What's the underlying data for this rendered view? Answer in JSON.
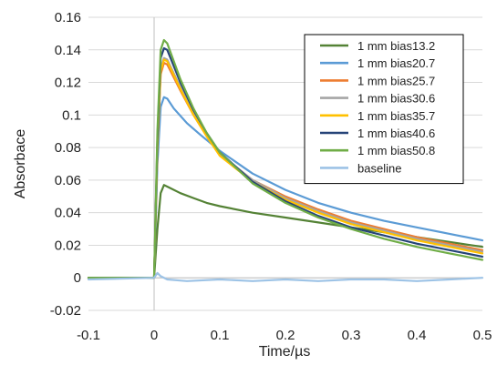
{
  "chart_data": {
    "type": "line",
    "title": "",
    "xlabel": "Time/µs",
    "ylabel": "Absorbace",
    "xlim": [
      -0.1,
      0.5
    ],
    "ylim": [
      -0.02,
      0.16
    ],
    "x_ticks": [
      "-0.1",
      "0",
      "0.1",
      "0.2",
      "0.3",
      "0.4",
      "0.5"
    ],
    "y_ticks": [
      "-0.02",
      "0",
      "0.02",
      "0.04",
      "0.06",
      "0.08",
      "0.1",
      "0.12",
      "0.14",
      "0.16"
    ],
    "grid": "horizontal",
    "legend_position": "top-right",
    "series": [
      {
        "name": "1 mm bias13.2",
        "color": "#548235",
        "points": [
          [
            -0.1,
            0.0
          ],
          [
            0.0,
            0.0
          ],
          [
            0.005,
            0.03
          ],
          [
            0.01,
            0.052
          ],
          [
            0.015,
            0.057
          ],
          [
            0.02,
            0.056
          ],
          [
            0.04,
            0.052
          ],
          [
            0.06,
            0.049
          ],
          [
            0.08,
            0.046
          ],
          [
            0.1,
            0.044
          ],
          [
            0.15,
            0.04
          ],
          [
            0.2,
            0.037
          ],
          [
            0.25,
            0.034
          ],
          [
            0.3,
            0.031
          ],
          [
            0.35,
            0.028
          ],
          [
            0.4,
            0.025
          ],
          [
            0.45,
            0.022
          ],
          [
            0.5,
            0.019
          ]
        ]
      },
      {
        "name": "1 mm bias20.7",
        "color": "#5B9BD5",
        "points": [
          [
            -0.1,
            0.0
          ],
          [
            0.0,
            0.0
          ],
          [
            0.005,
            0.07
          ],
          [
            0.01,
            0.105
          ],
          [
            0.015,
            0.111
          ],
          [
            0.02,
            0.11
          ],
          [
            0.03,
            0.104
          ],
          [
            0.05,
            0.095
          ],
          [
            0.07,
            0.088
          ],
          [
            0.1,
            0.078
          ],
          [
            0.15,
            0.064
          ],
          [
            0.2,
            0.054
          ],
          [
            0.25,
            0.046
          ],
          [
            0.3,
            0.04
          ],
          [
            0.35,
            0.035
          ],
          [
            0.4,
            0.031
          ],
          [
            0.45,
            0.027
          ],
          [
            0.5,
            0.023
          ]
        ]
      },
      {
        "name": "1 mm bias25.7",
        "color": "#ED7D31",
        "points": [
          [
            -0.1,
            0.0
          ],
          [
            0.0,
            0.0
          ],
          [
            0.005,
            0.08
          ],
          [
            0.01,
            0.125
          ],
          [
            0.015,
            0.132
          ],
          [
            0.02,
            0.131
          ],
          [
            0.04,
            0.115
          ],
          [
            0.06,
            0.1
          ],
          [
            0.08,
            0.087
          ],
          [
            0.1,
            0.076
          ],
          [
            0.15,
            0.06
          ],
          [
            0.2,
            0.05
          ],
          [
            0.25,
            0.042
          ],
          [
            0.3,
            0.035
          ],
          [
            0.35,
            0.03
          ],
          [
            0.4,
            0.025
          ],
          [
            0.45,
            0.021
          ],
          [
            0.5,
            0.017
          ]
        ]
      },
      {
        "name": "1 mm bias30.6",
        "color": "#A5A5A5",
        "points": [
          [
            -0.1,
            0.0
          ],
          [
            0.0,
            0.0
          ],
          [
            0.005,
            0.08
          ],
          [
            0.01,
            0.128
          ],
          [
            0.015,
            0.135
          ],
          [
            0.02,
            0.134
          ],
          [
            0.04,
            0.117
          ],
          [
            0.06,
            0.101
          ],
          [
            0.08,
            0.088
          ],
          [
            0.1,
            0.076
          ],
          [
            0.15,
            0.06
          ],
          [
            0.2,
            0.049
          ],
          [
            0.25,
            0.041
          ],
          [
            0.3,
            0.034
          ],
          [
            0.35,
            0.029
          ],
          [
            0.4,
            0.024
          ],
          [
            0.45,
            0.02
          ],
          [
            0.5,
            0.016
          ]
        ]
      },
      {
        "name": "1 mm bias35.7",
        "color": "#FFC000",
        "points": [
          [
            -0.1,
            0.0
          ],
          [
            0.0,
            0.0
          ],
          [
            0.005,
            0.08
          ],
          [
            0.01,
            0.127
          ],
          [
            0.015,
            0.134
          ],
          [
            0.02,
            0.133
          ],
          [
            0.04,
            0.116
          ],
          [
            0.06,
            0.1
          ],
          [
            0.08,
            0.087
          ],
          [
            0.1,
            0.075
          ],
          [
            0.15,
            0.059
          ],
          [
            0.2,
            0.048
          ],
          [
            0.25,
            0.04
          ],
          [
            0.3,
            0.033
          ],
          [
            0.35,
            0.028
          ],
          [
            0.4,
            0.023
          ],
          [
            0.45,
            0.019
          ],
          [
            0.5,
            0.015
          ]
        ]
      },
      {
        "name": "1 mm bias40.6",
        "color": "#264478",
        "points": [
          [
            -0.1,
            0.0
          ],
          [
            0.0,
            0.0
          ],
          [
            0.005,
            0.085
          ],
          [
            0.01,
            0.135
          ],
          [
            0.015,
            0.141
          ],
          [
            0.02,
            0.14
          ],
          [
            0.04,
            0.12
          ],
          [
            0.06,
            0.103
          ],
          [
            0.08,
            0.089
          ],
          [
            0.1,
            0.077
          ],
          [
            0.15,
            0.059
          ],
          [
            0.2,
            0.047
          ],
          [
            0.25,
            0.038
          ],
          [
            0.3,
            0.031
          ],
          [
            0.35,
            0.026
          ],
          [
            0.4,
            0.021
          ],
          [
            0.45,
            0.017
          ],
          [
            0.5,
            0.013
          ]
        ]
      },
      {
        "name": "1 mm bias50.8",
        "color": "#70AD47",
        "points": [
          [
            -0.1,
            0.0
          ],
          [
            0.0,
            0.0
          ],
          [
            0.005,
            0.09
          ],
          [
            0.01,
            0.14
          ],
          [
            0.015,
            0.146
          ],
          [
            0.02,
            0.144
          ],
          [
            0.04,
            0.122
          ],
          [
            0.06,
            0.104
          ],
          [
            0.08,
            0.089
          ],
          [
            0.1,
            0.077
          ],
          [
            0.15,
            0.058
          ],
          [
            0.2,
            0.046
          ],
          [
            0.25,
            0.037
          ],
          [
            0.3,
            0.03
          ],
          [
            0.35,
            0.024
          ],
          [
            0.4,
            0.019
          ],
          [
            0.45,
            0.015
          ],
          [
            0.5,
            0.011
          ]
        ]
      },
      {
        "name": "baseline",
        "color": "#9DC3E6",
        "points": [
          [
            -0.1,
            -0.001
          ],
          [
            0.0,
            0.0
          ],
          [
            0.005,
            0.003
          ],
          [
            0.01,
            0.001
          ],
          [
            0.02,
            -0.001
          ],
          [
            0.05,
            -0.002
          ],
          [
            0.1,
            -0.001
          ],
          [
            0.15,
            -0.002
          ],
          [
            0.2,
            -0.001
          ],
          [
            0.25,
            -0.002
          ],
          [
            0.3,
            -0.001
          ],
          [
            0.35,
            -0.001
          ],
          [
            0.4,
            -0.002
          ],
          [
            0.45,
            -0.001
          ],
          [
            0.5,
            0.0
          ]
        ]
      }
    ]
  }
}
